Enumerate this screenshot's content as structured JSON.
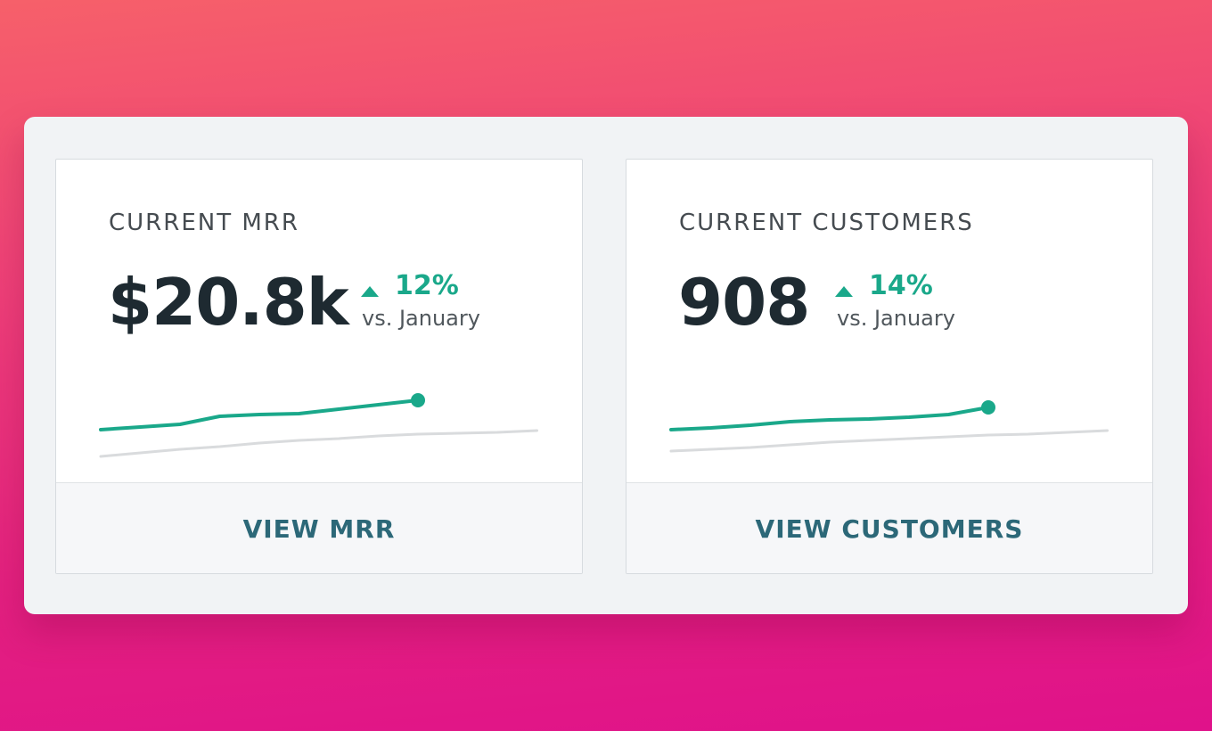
{
  "cards": [
    {
      "label": "CURRENT MRR",
      "value": "$20.8k",
      "change": "12%",
      "comparison": "vs. January",
      "sparkline": {
        "current": [
          39,
          42,
          45,
          54,
          56,
          57,
          62,
          67,
          72
        ],
        "previous": [
          9,
          13,
          17,
          20,
          24,
          27,
          29,
          32,
          34,
          35,
          36,
          38
        ]
      },
      "button": "VIEW MRR"
    },
    {
      "label": "CURRENT CUSTOMERS",
      "value": "908",
      "change": "14%",
      "comparison": "vs. January",
      "sparkline": {
        "current": [
          39,
          41,
          44,
          48,
          50,
          51,
          53,
          56,
          64
        ],
        "previous": [
          15,
          17,
          19,
          22,
          25,
          27,
          29,
          31,
          33,
          34,
          36,
          38
        ]
      },
      "button": "VIEW CUSTOMERS"
    }
  ]
}
